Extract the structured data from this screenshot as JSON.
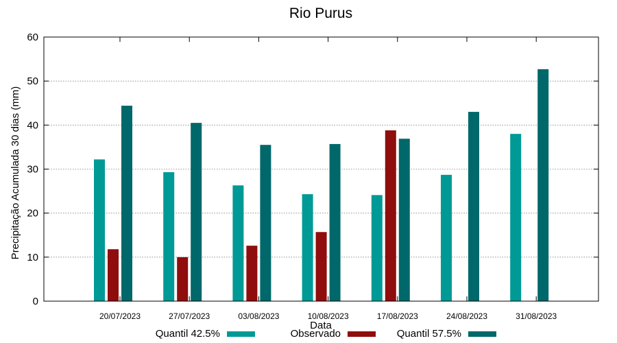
{
  "chart_data": {
    "type": "bar",
    "title": "Rio Purus",
    "xlabel": "Data",
    "ylabel": "Precipitação Acumulada 30 dias (mm)",
    "ylim": [
      0,
      60
    ],
    "yticks": [
      0,
      10,
      20,
      30,
      40,
      50,
      60
    ],
    "grid": true,
    "legend_position": "bottom",
    "categories": [
      "20/07/2023",
      "27/07/2023",
      "03/08/2023",
      "10/08/2023",
      "17/08/2023",
      "24/08/2023",
      "31/08/2023"
    ],
    "series": [
      {
        "name": "Quantil 42.5%",
        "color": "#009a96",
        "values": [
          32.2,
          29.3,
          26.3,
          24.3,
          24.1,
          28.7,
          38.0
        ]
      },
      {
        "name": "Observado",
        "color": "#8f0d0d",
        "values": [
          11.8,
          10.0,
          12.6,
          15.7,
          38.8,
          null,
          null
        ]
      },
      {
        "name": "Quantil 57.5%",
        "color": "#00686a",
        "values": [
          44.4,
          40.5,
          35.5,
          35.7,
          36.9,
          43.0,
          52.7
        ]
      }
    ]
  }
}
